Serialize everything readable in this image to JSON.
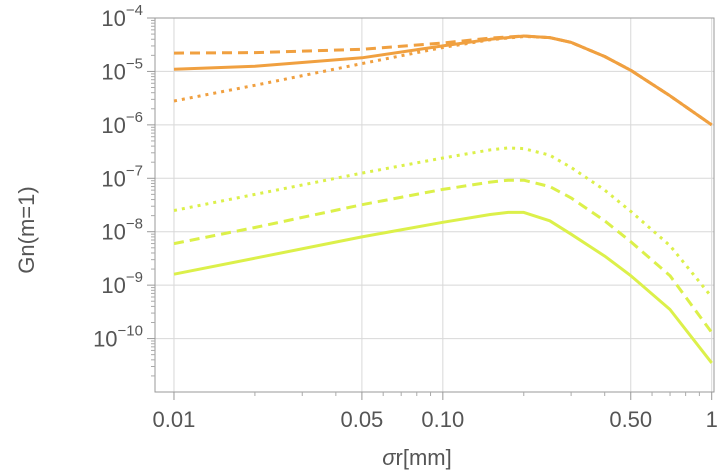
{
  "chart_data": {
    "type": "line",
    "xlabel_sym": "σ",
    "xlabel_rest": "r[mm]",
    "ylabel": "Gn(m=1)",
    "xscale": "log",
    "yscale": "log",
    "xlim": [
      0.0085,
      1.02
    ],
    "ylim": [
      1e-11,
      0.0001
    ],
    "grid": true,
    "x_ticks": [
      {
        "value": 0.01,
        "label": "0.01"
      },
      {
        "value": 0.05,
        "label": "0.05"
      },
      {
        "value": 0.1,
        "label": "0.10"
      },
      {
        "value": 0.5,
        "label": "0.50"
      },
      {
        "value": 1,
        "label": "1"
      }
    ],
    "x_minor_ticks": [
      0.02,
      0.03,
      0.04,
      0.06,
      0.07,
      0.08,
      0.09,
      0.2,
      0.3,
      0.4,
      0.6,
      0.7,
      0.8,
      0.9
    ],
    "y_ticks": [
      {
        "value": 1e-10,
        "base": "10",
        "exp": "−10"
      },
      {
        "value": 1e-09,
        "base": "10",
        "exp": "−9"
      },
      {
        "value": 1e-08,
        "base": "10",
        "exp": "−8"
      },
      {
        "value": 1e-07,
        "base": "10",
        "exp": "−7"
      },
      {
        "value": 1e-06,
        "base": "10",
        "exp": "−6"
      },
      {
        "value": 1e-05,
        "base": "10",
        "exp": "−5"
      },
      {
        "value": 0.0001,
        "base": "10",
        "exp": "−4"
      }
    ],
    "series": [
      {
        "color": "#f0a040",
        "dash": "solid",
        "x": [
          0.01,
          0.02,
          0.05,
          0.1,
          0.15,
          0.2,
          0.25,
          0.3,
          0.4,
          0.5,
          0.7,
          1.0
        ],
        "y": [
          1.1e-05,
          1.25e-05,
          1.8e-05,
          3e-05,
          4e-05,
          4.6e-05,
          4.3e-05,
          3.5e-05,
          1.9e-05,
          1.05e-05,
          3.5e-06,
          1e-06
        ]
      },
      {
        "color": "#f0a040",
        "dash": "dashed",
        "x": [
          0.01,
          0.02,
          0.05,
          0.1,
          0.15,
          0.2,
          0.25,
          0.3,
          0.4,
          0.5,
          0.7,
          1.0
        ],
        "y": [
          2.2e-05,
          2.25e-05,
          2.6e-05,
          3.4e-05,
          4.2e-05,
          4.6e-05,
          4.3e-05,
          3.5e-05,
          1.9e-05,
          1.05e-05,
          3.5e-06,
          1e-06
        ]
      },
      {
        "color": "#f0a040",
        "dash": "dotted",
        "x": [
          0.01,
          0.02,
          0.05,
          0.1,
          0.15,
          0.2,
          0.25,
          0.3,
          0.4,
          0.5,
          0.7,
          1.0
        ],
        "y": [
          2.8e-06,
          5.5e-06,
          1.4e-05,
          2.8e-05,
          3.9e-05,
          4.5e-05,
          4.3e-05,
          3.5e-05,
          1.9e-05,
          1.05e-05,
          3.5e-06,
          1e-06
        ]
      },
      {
        "color": "#dcf04a",
        "dash": "solid",
        "x": [
          0.01,
          0.02,
          0.05,
          0.1,
          0.15,
          0.175,
          0.2,
          0.25,
          0.3,
          0.4,
          0.5,
          0.7,
          1.0
        ],
        "y": [
          1.6e-09,
          3.2e-09,
          8e-09,
          1.5e-08,
          2.1e-08,
          2.3e-08,
          2.3e-08,
          1.6e-08,
          9e-09,
          3.5e-09,
          1.5e-09,
          3.5e-10,
          3.5e-11
        ]
      },
      {
        "color": "#dcf04a",
        "dash": "dashed",
        "x": [
          0.01,
          0.02,
          0.05,
          0.1,
          0.15,
          0.175,
          0.2,
          0.25,
          0.3,
          0.4,
          0.5,
          0.7,
          1.0
        ],
        "y": [
          6e-09,
          1.2e-08,
          3.2e-08,
          6.2e-08,
          8.5e-08,
          9.2e-08,
          9.2e-08,
          7e-08,
          4.3e-08,
          1.6e-08,
          6.5e-09,
          1.5e-09,
          1.3e-10
        ]
      },
      {
        "color": "#dcf04a",
        "dash": "dotted",
        "x": [
          0.01,
          0.02,
          0.05,
          0.1,
          0.15,
          0.175,
          0.2,
          0.25,
          0.3,
          0.4,
          0.5,
          0.7,
          1.0
        ],
        "y": [
          2.5e-08,
          5e-08,
          1.25e-07,
          2.4e-07,
          3.4e-07,
          3.7e-07,
          3.6e-07,
          2.7e-07,
          1.6e-07,
          6e-08,
          2.4e-08,
          5.5e-09,
          6e-10
        ]
      }
    ]
  }
}
